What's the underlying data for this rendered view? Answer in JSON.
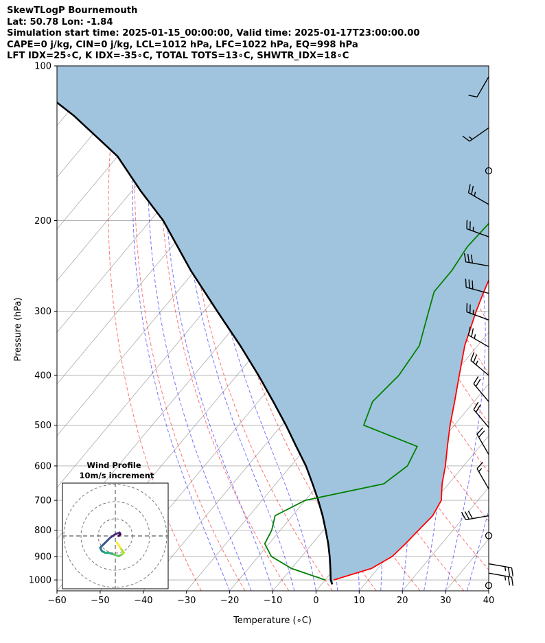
{
  "title": {
    "line1": "SkewTLogP Bournemouth",
    "line2": "Lat: 50.78   Lon: -1.84",
    "line3": "Simulation start time: 2025-01-15_00:00:00, Valid time: 2025-01-17T23:00:00.00",
    "line4": "CAPE=0 j/kg, CIN=0 j/kg, LCL=1012 hPa, LFC=1022 hPa, EQ=998 hPa",
    "line5": "LFT IDX=25∘C, K IDX=-35∘C, TOTAL TOTS=13∘C, SHWTR_IDX=18∘C"
  },
  "chart_data": {
    "type": "line",
    "xlabel": "Temperature (∘C)",
    "ylabel": "Pressure (hPa)",
    "xlim": [
      -60,
      40
    ],
    "ylim": [
      1050,
      100
    ],
    "x_ticks": [
      -60,
      -50,
      -40,
      -30,
      -20,
      -10,
      0,
      10,
      20,
      30,
      40
    ],
    "y_ticks": [
      100,
      200,
      300,
      400,
      500,
      600,
      700,
      800,
      900,
      1000
    ],
    "y_scale": "log",
    "grid": true,
    "colors": {
      "temperature": "#ff0000",
      "dewpoint": "#008000",
      "parcel": "#000000",
      "fill": "#a0c4dd",
      "dry_adiabats": "#ff0000",
      "moist_adiabats": "#0000ff",
      "mixing_ratio": "#808080"
    },
    "series": [
      {
        "key": "temperature",
        "pts": [
          [
            2.0,
            1000
          ],
          [
            8.5,
            950
          ],
          [
            11.0,
            900
          ],
          [
            11.6,
            850
          ],
          [
            12.0,
            800
          ],
          [
            12.5,
            750
          ],
          [
            11.5,
            700
          ],
          [
            8.5,
            650
          ],
          [
            5.8,
            600
          ],
          [
            2.5,
            550
          ],
          [
            -1.0,
            500
          ],
          [
            -4.5,
            450
          ],
          [
            -8.5,
            400
          ],
          [
            -13.0,
            350
          ],
          [
            -17.0,
            300
          ],
          [
            -19.0,
            275
          ],
          [
            -21.0,
            250
          ],
          [
            -22.5,
            225
          ],
          [
            -24.0,
            200
          ],
          [
            -25.0,
            185
          ],
          [
            -26.0,
            175
          ],
          [
            -26.5,
            160
          ],
          [
            -27.5,
            150
          ],
          [
            -31.0,
            130
          ],
          [
            -37.0,
            115
          ],
          [
            -43.0,
            100
          ]
        ]
      },
      {
        "key": "dewpoint",
        "pts": [
          [
            0.0,
            1000
          ],
          [
            -10.0,
            950
          ],
          [
            -17.0,
            900
          ],
          [
            -21.0,
            850
          ],
          [
            -22.0,
            800
          ],
          [
            -24.0,
            750
          ],
          [
            -20.0,
            700
          ],
          [
            -5.0,
            650
          ],
          [
            -3.0,
            600
          ],
          [
            -4.5,
            550
          ],
          [
            -21.0,
            500
          ],
          [
            -23.5,
            450
          ],
          [
            -22.5,
            400
          ],
          [
            -23.5,
            350
          ],
          [
            -28.0,
            300
          ],
          [
            -30.5,
            275
          ],
          [
            -30.5,
            250
          ],
          [
            -31.5,
            225
          ],
          [
            -31.0,
            200
          ],
          [
            -31.5,
            175
          ],
          [
            -33.0,
            160
          ],
          [
            -35.0,
            140
          ],
          [
            -38.0,
            125
          ],
          [
            -43.0,
            110
          ],
          [
            -46.0,
            100
          ]
        ]
      },
      {
        "key": "parcel",
        "pts": [
          [
            2.5,
            1020
          ],
          [
            1.3,
            1000
          ],
          [
            -1.0,
            950
          ],
          [
            -3.5,
            900
          ],
          [
            -6.3,
            850
          ],
          [
            -9.5,
            800
          ],
          [
            -13.0,
            750
          ],
          [
            -17.0,
            700
          ],
          [
            -21.5,
            650
          ],
          [
            -26.5,
            600
          ],
          [
            -32.5,
            550
          ],
          [
            -39.0,
            500
          ],
          [
            -46.5,
            450
          ],
          [
            -55.0,
            400
          ],
          [
            -65.0,
            350
          ],
          [
            -77.0,
            300
          ],
          [
            -91.0,
            250
          ],
          [
            -107.0,
            200
          ],
          [
            -118.0,
            175
          ],
          [
            -130.0,
            150
          ],
          [
            -148.0,
            125
          ],
          [
            -162.0,
            110
          ],
          [
            -172.0,
            100
          ]
        ]
      }
    ],
    "wind_barbs": [
      {
        "p": 1025,
        "calm": true
      },
      {
        "p": 970,
        "speed": 25,
        "dir": 100
      },
      {
        "p": 930,
        "speed": 25,
        "dir": 100
      },
      {
        "p": 820,
        "calm": true
      },
      {
        "p": 750,
        "speed": 30,
        "dir": 260
      },
      {
        "p": 665,
        "speed": 15,
        "dir": 330
      },
      {
        "p": 570,
        "speed": 20,
        "dir": 330
      },
      {
        "p": 505,
        "speed": 20,
        "dir": 320
      },
      {
        "p": 450,
        "speed": 20,
        "dir": 320
      },
      {
        "p": 400,
        "speed": 25,
        "dir": 310
      },
      {
        "p": 352,
        "speed": 25,
        "dir": 300
      },
      {
        "p": 312,
        "speed": 25,
        "dir": 290
      },
      {
        "p": 277,
        "speed": 30,
        "dir": 285
      },
      {
        "p": 245,
        "speed": 30,
        "dir": 280
      },
      {
        "p": 215,
        "speed": 25,
        "dir": 290
      },
      {
        "p": 186,
        "speed": 25,
        "dir": 300
      },
      {
        "p": 160,
        "calm": true
      },
      {
        "p": 132,
        "speed": 15,
        "dir": 235
      },
      {
        "p": 105,
        "speed": 10,
        "dir": 210
      }
    ],
    "inset": {
      "title": "Wind Profile",
      "subtitle": "10m/s increment",
      "hodograph": [
        [
          2,
          0
        ],
        [
          3,
          -1
        ],
        [
          2.5,
          -2
        ],
        [
          0,
          -1
        ],
        [
          -3,
          1
        ],
        [
          -6,
          4
        ],
        [
          -8,
          6
        ],
        [
          -9,
          7
        ],
        [
          -8,
          9
        ],
        [
          -6,
          10
        ],
        [
          -4,
          10
        ],
        [
          -1,
          11
        ],
        [
          2,
          12
        ],
        [
          4,
          11
        ],
        [
          5,
          10
        ],
        [
          3,
          7
        ],
        [
          1,
          4
        ]
      ]
    }
  }
}
